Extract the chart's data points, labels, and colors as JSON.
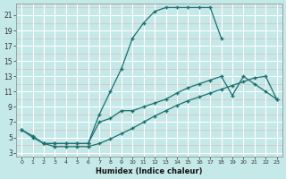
{
  "xlabel": "Humidex (Indice chaleur)",
  "xlim": [
    -0.5,
    23.5
  ],
  "ylim": [
    2.5,
    22.5
  ],
  "yticks": [
    3,
    5,
    7,
    9,
    11,
    13,
    15,
    17,
    19,
    21
  ],
  "xticks": [
    0,
    1,
    2,
    3,
    4,
    5,
    6,
    7,
    8,
    9,
    10,
    11,
    12,
    13,
    14,
    15,
    16,
    17,
    18,
    19,
    20,
    21,
    22,
    23
  ],
  "bg_color": "#c5e8e8",
  "grid_color_major": "#b0d8d8",
  "grid_color_minor": "#daf0f0",
  "line_color": "#1a7070",
  "line1_x": [
    0,
    1,
    2,
    3,
    4,
    5,
    6,
    7,
    8,
    9,
    10,
    11,
    12,
    13,
    14,
    15,
    16,
    17,
    18
  ],
  "line1_y": [
    6,
    5,
    4.2,
    4.2,
    4.2,
    4.2,
    4.2,
    8,
    11,
    14,
    18,
    20,
    21.5,
    22,
    22,
    22,
    22,
    22,
    18
  ],
  "line2_x": [
    0,
    1,
    2,
    3,
    4,
    5,
    6,
    7,
    8,
    9,
    10,
    11,
    12,
    13,
    14,
    15,
    16,
    17,
    18,
    19,
    20,
    21,
    22,
    23
  ],
  "line2_y": [
    6,
    5.2,
    4.2,
    3.8,
    3.8,
    3.8,
    3.8,
    4.2,
    4.8,
    5.5,
    6.2,
    7,
    7.8,
    8.5,
    9.2,
    9.8,
    10.3,
    10.8,
    11.3,
    11.8,
    12.3,
    12.8,
    13,
    10
  ],
  "line3_x": [
    2,
    3,
    4,
    5,
    6,
    7,
    8,
    9,
    10,
    11,
    12,
    13,
    14,
    15,
    16,
    17,
    18,
    19,
    20,
    21,
    22,
    23
  ],
  "line3_y": [
    4.2,
    4.2,
    4.2,
    4.2,
    4.2,
    7,
    7.5,
    8.5,
    8.5,
    9,
    9.5,
    10,
    10.8,
    11.5,
    12,
    12.5,
    13,
    10.5,
    13,
    12,
    11,
    10
  ]
}
